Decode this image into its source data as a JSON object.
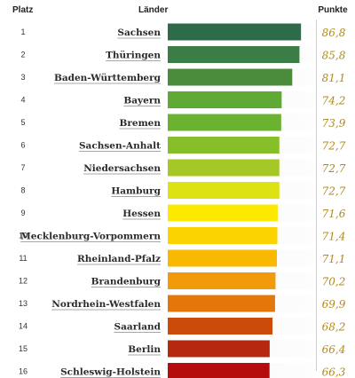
{
  "header": {
    "rank": "Platz",
    "name": "Länder",
    "points": "Punkte"
  },
  "chart_data": {
    "type": "bar",
    "orientation": "horizontal",
    "categories": [
      "Sachsen",
      "Thüringen",
      "Baden-Württemberg",
      "Bayern",
      "Bremen",
      "Sachsen-Anhalt",
      "Niedersachsen",
      "Hamburg",
      "Hessen",
      "Mecklenburg-Vorpommern",
      "Rheinland-Pfalz",
      "Brandenburg",
      "Nordrhein-Westfalen",
      "Saarland",
      "Berlin",
      "Schleswig-Holstein"
    ],
    "ranks": [
      "1",
      "2",
      "3",
      "4",
      "5",
      "6",
      "7",
      "8",
      "9",
      "10",
      "11",
      "12",
      "13",
      "14",
      "15",
      "16"
    ],
    "values": [
      86.8,
      85.8,
      81.1,
      74.2,
      73.9,
      72.7,
      72.7,
      72.7,
      71.6,
      71.4,
      71.1,
      70.2,
      69.9,
      68.2,
      66.4,
      66.3
    ],
    "value_labels": [
      "86,8",
      "85,8",
      "81,1",
      "74,2",
      "73,9",
      "72,7",
      "72,7",
      "72,7",
      "71,6",
      "71,4",
      "71,1",
      "70,2",
      "69,9",
      "68,2",
      "66,4",
      "66,3"
    ],
    "colors": [
      "#2e6b4a",
      "#3a7d47",
      "#4a8c3c",
      "#5fa935",
      "#6bb231",
      "#86bf2a",
      "#a6c826",
      "#dde212",
      "#fde800",
      "#fbd400",
      "#f8b900",
      "#f29a0a",
      "#e5760a",
      "#cc4a0a",
      "#b62810",
      "#b50c0e"
    ],
    "xlim": [
      0,
      100
    ],
    "grid": false,
    "legend": "none"
  }
}
